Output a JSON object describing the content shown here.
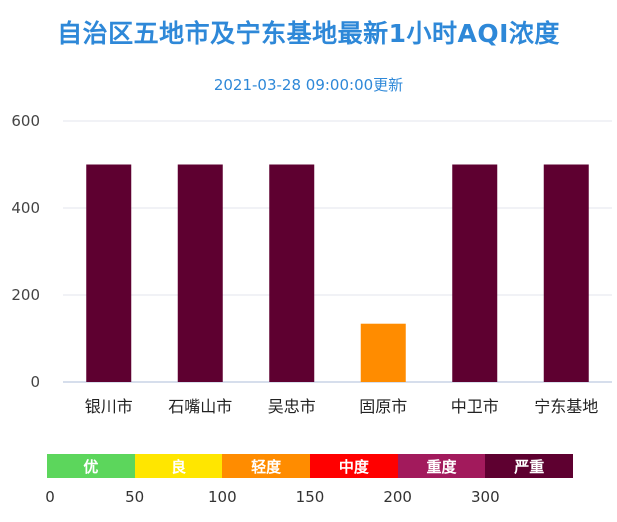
{
  "title": "自治区五地市及宁东基地最新1小时AQI浓度",
  "subtitle": "2021-03-28 09:00:00更新",
  "chart_data": {
    "type": "bar",
    "categories": [
      "银川市",
      "石嘴山市",
      "吴忠市",
      "固原市",
      "中卫市",
      "宁东基地"
    ],
    "values": [
      500,
      500,
      500,
      134,
      500,
      500
    ],
    "bar_colors": [
      "#5e0030",
      "#5e0030",
      "#5e0030",
      "#ff8c00",
      "#5e0030",
      "#5e0030"
    ],
    "ylim": [
      0,
      600
    ],
    "yticks": [
      0,
      200,
      400,
      600
    ],
    "grid": true
  },
  "legend": {
    "segments": [
      {
        "label": "优",
        "color": "#5cd65c"
      },
      {
        "label": "良",
        "color": "#ffe600"
      },
      {
        "label": "轻度",
        "color": "#ff8c00"
      },
      {
        "label": "中度",
        "color": "#ff0000"
      },
      {
        "label": "重度",
        "color": "#a21a5c"
      },
      {
        "label": "严重",
        "color": "#5e0030"
      }
    ],
    "ticks": [
      "0",
      "50",
      "100",
      "150",
      "200",
      "300"
    ]
  }
}
